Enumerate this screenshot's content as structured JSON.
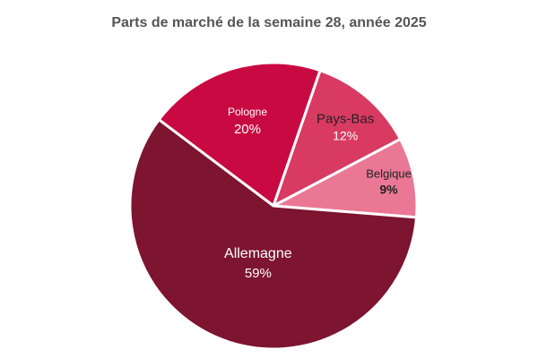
{
  "chart_data": {
    "type": "pie",
    "title": "Parts de marché de la semaine 28, année 2025",
    "slices": [
      {
        "label": "Allemagne",
        "value": 59,
        "value_label": "59%",
        "color": "#7d1430",
        "label_color": "#ffffff",
        "value_color": "#ffffff"
      },
      {
        "label": "Pologne",
        "value": 20,
        "value_label": "20%",
        "color": "#c90a42",
        "label_color": "#ffffff",
        "value_color": "#ffffff"
      },
      {
        "label": "Pays-Bas",
        "value": 12,
        "value_label": "12%",
        "color": "#d93a62",
        "label_color": "#222222",
        "value_color": "#ffffff"
      },
      {
        "label": "Belgique",
        "value": 9,
        "value_label": "9%",
        "color": "#ea7895",
        "label_color": "#222222",
        "value_color": "#222222"
      }
    ],
    "legend": "none"
  }
}
